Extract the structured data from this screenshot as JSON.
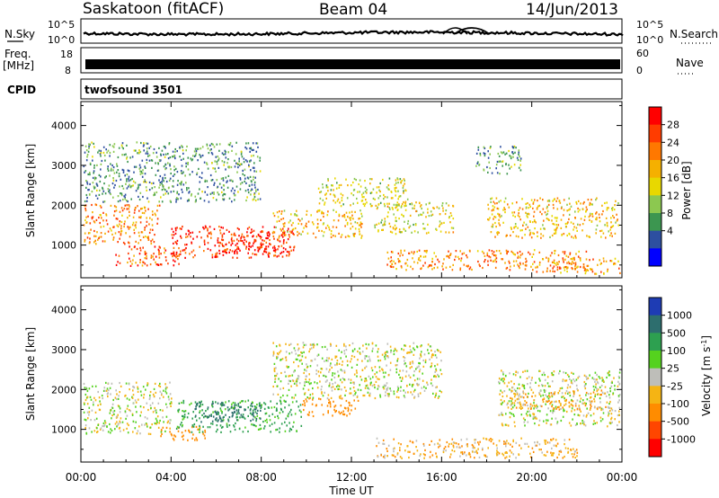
{
  "header": {
    "station": "Saskatoon (fitACF)",
    "beam": "Beam 04",
    "date": "14/Jun/2013"
  },
  "top_panels": {
    "nsky_label": "N.Sky",
    "nsky_ticks": [
      "10^5",
      "10^0"
    ],
    "nsearch_label": "N.Search",
    "nsearch_ticks": [
      "10^5",
      "10^0"
    ],
    "freq_label": "Freq.",
    "freq_unit": "[MHz]",
    "freq_ticks": [
      "18",
      "8"
    ],
    "nave_label": "Nave",
    "nave_ticks": [
      "60",
      "0"
    ],
    "cpid_label": "CPID",
    "cpid_value": "twofsound 3501"
  },
  "axes": {
    "ylabel": "Slant Range [km]",
    "yticks": [
      "4000",
      "3000",
      "2000",
      "1000"
    ],
    "xlabel": "Time UT",
    "xticks": [
      "00:00",
      "04:00",
      "08:00",
      "12:00",
      "16:00",
      "20:00",
      "00:00"
    ]
  },
  "power_colorbar": {
    "label": "Power [dB]",
    "ticks": [
      "28",
      "24",
      "20",
      "16",
      "12",
      "8",
      "4"
    ],
    "colors": [
      "#ff0000",
      "#ff3c00",
      "#ff7800",
      "#f5b000",
      "#e8d800",
      "#8cc850",
      "#3c9650",
      "#2d4fa0",
      "#0000ff"
    ]
  },
  "velocity_colorbar": {
    "label": "Velocity [m s",
    "label_sup": "-1",
    "label_end": "]",
    "ticks": [
      "1000",
      "500",
      "100",
      "25",
      "-25",
      "-100",
      "-500",
      "-1000"
    ],
    "colors": [
      "#1e3cb4",
      "#2d6e6e",
      "#2da050",
      "#55d21e",
      "#bebeb9",
      "#f5b414",
      "#ff8c00",
      "#ff4600",
      "#ff0000"
    ]
  },
  "chart_data": [
    {
      "type": "heatmap",
      "name": "power",
      "x_range": [
        0,
        24
      ],
      "ylim": [
        180,
        4600
      ],
      "clim": [
        0,
        30
      ],
      "blobs": [
        {
          "t0": 0.1,
          "t1": 3.5,
          "r0": 1050,
          "r1": 2050,
          "level": 22
        },
        {
          "t0": 1.5,
          "t1": 4.5,
          "r0": 500,
          "r1": 1000,
          "level": 25
        },
        {
          "t0": 4.0,
          "t1": 9.5,
          "r0": 700,
          "r1": 1500,
          "level": 27
        },
        {
          "t0": 6.0,
          "t1": 9.0,
          "r0": 800,
          "r1": 1350,
          "level": 29
        },
        {
          "t0": 8.5,
          "t1": 12.5,
          "r0": 1200,
          "r1": 1900,
          "level": 18
        },
        {
          "t0": 10.5,
          "t1": 14.5,
          "r0": 2000,
          "r1": 2700,
          "level": 14
        },
        {
          "t0": 13.0,
          "t1": 16.5,
          "r0": 1300,
          "r1": 2100,
          "level": 15
        },
        {
          "t0": 13.5,
          "t1": 22.5,
          "r0": 400,
          "r1": 900,
          "level": 22
        },
        {
          "t0": 18.0,
          "t1": 23.9,
          "r0": 1200,
          "r1": 2200,
          "level": 18
        },
        {
          "t0": 20.0,
          "t1": 23.9,
          "r0": 300,
          "r1": 700,
          "level": 20
        },
        {
          "t0": 0.1,
          "t1": 8.0,
          "r0": 2100,
          "r1": 3600,
          "level": 8
        },
        {
          "t0": 17.5,
          "t1": 19.5,
          "r0": 2800,
          "r1": 3500,
          "level": 8
        }
      ]
    },
    {
      "type": "heatmap",
      "name": "velocity",
      "x_range": [
        0,
        24
      ],
      "ylim": [
        180,
        4600
      ],
      "clim": [
        -1000,
        1000
      ],
      "blobs": [
        {
          "t0": 0.1,
          "t1": 4.0,
          "r0": 900,
          "r1": 2200,
          "level": 0
        },
        {
          "t0": 3.5,
          "t1": 5.5,
          "r0": 750,
          "r1": 1100,
          "level": -300
        },
        {
          "t0": 4.2,
          "t1": 9.8,
          "r0": 950,
          "r1": 1750,
          "level": 150
        },
        {
          "t0": 5.0,
          "t1": 8.0,
          "r0": 1200,
          "r1": 1700,
          "level": 600
        },
        {
          "t0": 9.8,
          "t1": 12.3,
          "r0": 1350,
          "r1": 1800,
          "level": -300
        },
        {
          "t0": 8.5,
          "t1": 16.0,
          "r0": 1800,
          "r1": 3200,
          "level": 0
        },
        {
          "t0": 13.0,
          "t1": 22.0,
          "r0": 300,
          "r1": 800,
          "level": -80
        },
        {
          "t0": 18.5,
          "t1": 23.9,
          "r0": 1100,
          "r1": 2500,
          "level": 0
        },
        {
          "t0": 19.0,
          "t1": 23.5,
          "r0": 1500,
          "r1": 2000,
          "level": -90
        }
      ]
    }
  ]
}
